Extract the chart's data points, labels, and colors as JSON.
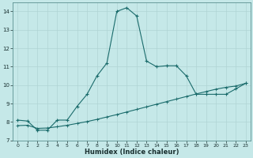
{
  "xlabel": "Humidex (Indice chaleur)",
  "bg_color": "#c5e8e8",
  "grid_color": "#b0d4d4",
  "line_color": "#1a6b6b",
  "xlim": [
    -0.5,
    23.5
  ],
  "ylim": [
    7,
    14.5
  ],
  "yticks": [
    7,
    8,
    9,
    10,
    11,
    12,
    13,
    14
  ],
  "xticks": [
    0,
    1,
    2,
    3,
    4,
    5,
    6,
    7,
    8,
    9,
    10,
    11,
    12,
    13,
    14,
    15,
    16,
    17,
    18,
    19,
    20,
    21,
    22,
    23
  ],
  "curve1_x": [
    0,
    1,
    2,
    3,
    4,
    5,
    6,
    7,
    8,
    9,
    10,
    11,
    12,
    13,
    14,
    15,
    16,
    17,
    18,
    19,
    20,
    21,
    22,
    23
  ],
  "curve1_y": [
    8.1,
    8.05,
    7.55,
    7.55,
    8.1,
    8.1,
    8.85,
    9.5,
    10.5,
    11.2,
    14.0,
    14.2,
    13.75,
    11.3,
    11.0,
    11.05,
    11.05,
    10.5,
    9.5,
    9.5,
    9.5,
    9.5,
    9.8,
    10.1
  ],
  "curve2_x": [
    0,
    1,
    2,
    3,
    4,
    5,
    6,
    7,
    8,
    9,
    10,
    11,
    12,
    13,
    14,
    15,
    16,
    17,
    18,
    19,
    20,
    21,
    22,
    23
  ],
  "curve2_y": [
    7.8,
    7.82,
    7.65,
    7.67,
    7.74,
    7.82,
    7.92,
    8.02,
    8.14,
    8.27,
    8.4,
    8.54,
    8.68,
    8.82,
    8.96,
    9.1,
    9.24,
    9.38,
    9.52,
    9.65,
    9.78,
    9.88,
    9.95,
    10.1
  ]
}
